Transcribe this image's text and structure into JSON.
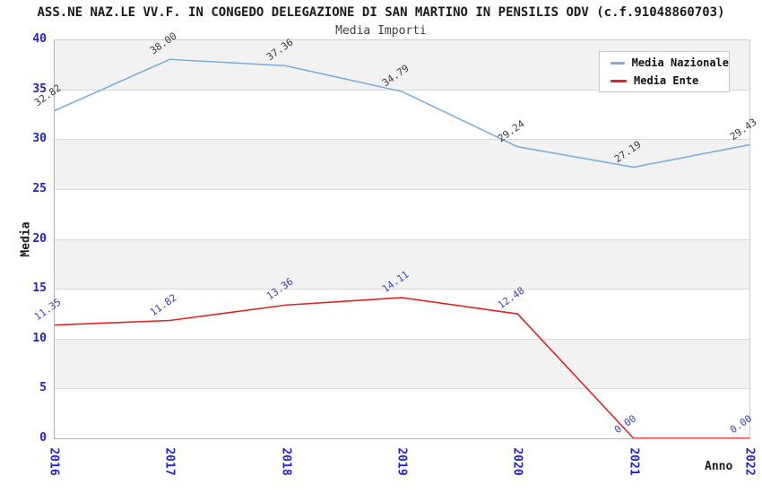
{
  "title": "ASS.NE NAZ.LE VV.F. IN CONGEDO DELEGAZIONE DI SAN MARTINO IN PENSILIS ODV (c.f.91048860703)",
  "subtitle": "Media Importi",
  "chart_data": {
    "type": "line",
    "x": [
      2016,
      2017,
      2018,
      2019,
      2020,
      2021,
      2022
    ],
    "series": [
      {
        "name": "Media Nazionale",
        "color": "#7aafe0",
        "label_color": "#3a3a3a",
        "values": [
          32.82,
          38.0,
          37.36,
          34.79,
          29.24,
          27.19,
          29.43
        ],
        "labels": [
          "32.82",
          "38.00",
          "37.36",
          "34.79",
          "29.24",
          "27.19",
          "29.43"
        ]
      },
      {
        "name": "Media Ente",
        "color": "#e02424",
        "label_color": "#4040b8",
        "values": [
          11.35,
          11.82,
          13.36,
          14.11,
          12.48,
          0.0,
          0.0
        ],
        "labels": [
          "11.35",
          "11.82",
          "13.36",
          "14.11",
          "12.48",
          "0.00",
          "0.00"
        ]
      }
    ],
    "xlabel": "Anno",
    "ylabel": "Media",
    "ylim": [
      0,
      40
    ],
    "ytick_step": 5,
    "legend_position": "top-right",
    "grid_bands": true,
    "band_color": "#f2f2f2",
    "tick_color": "#2222cc"
  }
}
